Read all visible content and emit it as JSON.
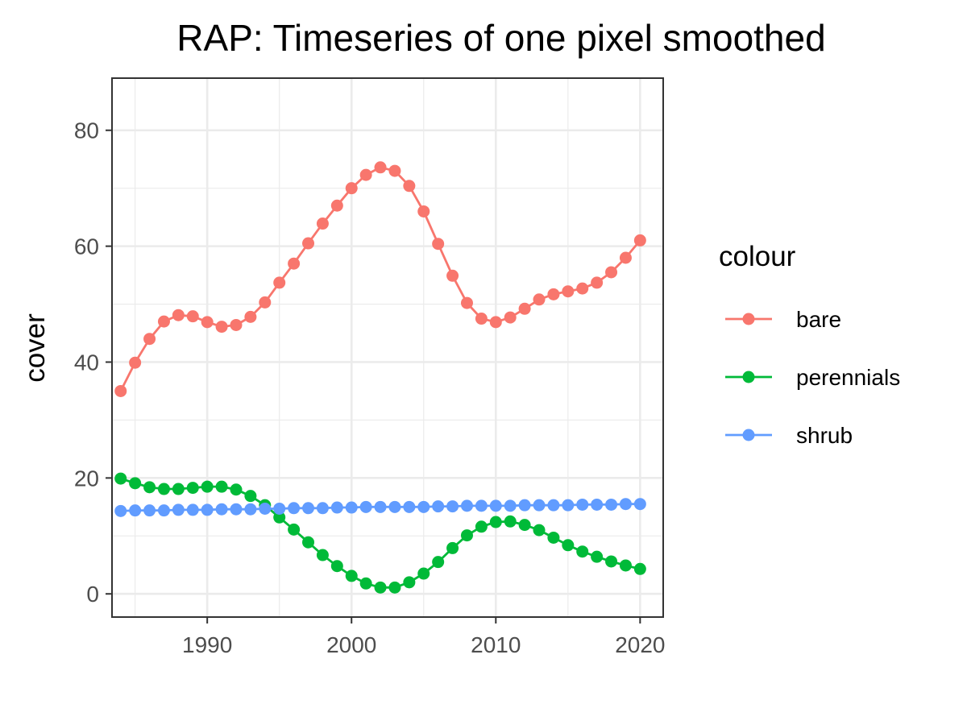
{
  "chart_data": {
    "type": "line",
    "title": "RAP: Timeseries of one pixel smoothed",
    "xlabel": "",
    "ylabel": "cover",
    "xlim": [
      1983.4,
      2021.6
    ],
    "ylim": [
      -4,
      89
    ],
    "x_ticks": [
      1990,
      2000,
      2010,
      2020
    ],
    "y_ticks": [
      0,
      20,
      40,
      60,
      80
    ],
    "x_minor": [
      1985,
      1995,
      2005,
      2015
    ],
    "y_minor": [
      10,
      30,
      50,
      70
    ],
    "grid": true,
    "legend": {
      "title": "colour",
      "position": "right"
    },
    "x": [
      1984,
      1985,
      1986,
      1987,
      1988,
      1989,
      1990,
      1991,
      1992,
      1993,
      1994,
      1995,
      1996,
      1997,
      1998,
      1999,
      2000,
      2001,
      2002,
      2003,
      2004,
      2005,
      2006,
      2007,
      2008,
      2009,
      2010,
      2011,
      2012,
      2013,
      2014,
      2015,
      2016,
      2017,
      2018,
      2019,
      2020
    ],
    "series": [
      {
        "name": "bare",
        "color": "#F8766D",
        "values": [
          35.0,
          39.9,
          44.0,
          47.0,
          48.1,
          47.9,
          46.9,
          46.1,
          46.4,
          47.8,
          50.3,
          53.7,
          57.0,
          60.5,
          63.9,
          67.0,
          70.0,
          72.3,
          73.6,
          73.0,
          70.4,
          66.0,
          60.4,
          54.9,
          50.2,
          47.5,
          46.9,
          47.7,
          49.2,
          50.8,
          51.7,
          52.2,
          52.7,
          53.7,
          55.5,
          58.0,
          61.0
        ]
      },
      {
        "name": "perennials",
        "color": "#00BA38",
        "values": [
          19.9,
          19.1,
          18.4,
          18.1,
          18.1,
          18.3,
          18.5,
          18.5,
          18.0,
          16.9,
          15.3,
          13.2,
          11.1,
          8.9,
          6.7,
          4.8,
          3.1,
          1.8,
          1.1,
          1.1,
          2.0,
          3.5,
          5.5,
          7.9,
          10.1,
          11.6,
          12.4,
          12.5,
          11.9,
          11.0,
          9.7,
          8.4,
          7.3,
          6.4,
          5.6,
          4.9,
          4.3
        ]
      },
      {
        "name": "shrub",
        "color": "#619CFF",
        "values": [
          14.3,
          14.4,
          14.4,
          14.4,
          14.5,
          14.5,
          14.5,
          14.6,
          14.6,
          14.6,
          14.7,
          14.7,
          14.8,
          14.8,
          14.8,
          14.9,
          14.9,
          15.0,
          15.0,
          15.0,
          15.0,
          15.0,
          15.1,
          15.1,
          15.2,
          15.2,
          15.2,
          15.2,
          15.3,
          15.3,
          15.3,
          15.3,
          15.4,
          15.4,
          15.4,
          15.5,
          15.5
        ]
      }
    ]
  }
}
